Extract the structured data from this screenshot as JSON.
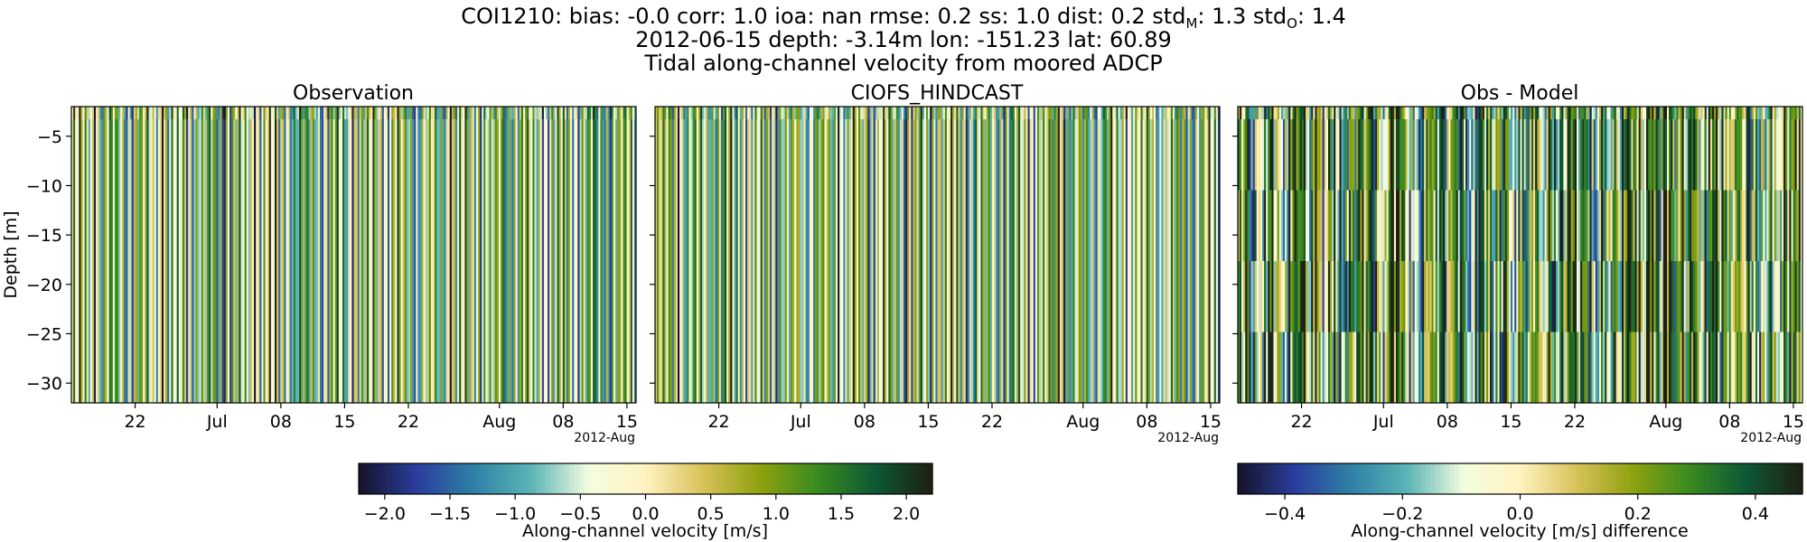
{
  "header": {
    "line1_prefix": "COI1210: bias: -0.0  corr: 1.0  ioa: nan  rmse: 0.2  ss: 1.0  dist: 0.2  std",
    "line1_sub_m": "M",
    "line1_mid": ": 1.3  std",
    "line1_sub_o": "O",
    "line1_suffix": ": 1.4",
    "line2": "2012-06-15 depth: -3.14m lon: -151.23 lat: 60.89",
    "line3": "Tidal along-channel velocity from moored ADCP"
  },
  "chart_data": [
    {
      "type": "heatmap",
      "title": "Observation",
      "ylabel": "Depth [m]",
      "ylim": [
        -32,
        -2
      ],
      "yticks": [
        -5,
        -10,
        -15,
        -20,
        -25,
        -30
      ],
      "xlim": [
        "2012-06-15",
        "2012-08-16"
      ],
      "xticks": [
        {
          "date": "2012-06-22",
          "label": "22"
        },
        {
          "date": "2012-07-01",
          "label": "Jul"
        },
        {
          "date": "2012-07-08",
          "label": "08"
        },
        {
          "date": "2012-07-15",
          "label": "15"
        },
        {
          "date": "2012-07-22",
          "label": "22"
        },
        {
          "date": "2012-08-01",
          "label": "Aug"
        },
        {
          "date": "2012-08-08",
          "label": "08"
        },
        {
          "date": "2012-08-15",
          "label": "15"
        }
      ],
      "offset_label": "2012-Aug",
      "colorbar": "velocity"
    },
    {
      "type": "heatmap",
      "title": "CIOFS_HINDCAST",
      "ylim": [
        -32,
        -2
      ],
      "xlim": [
        "2012-06-15",
        "2012-08-16"
      ],
      "xticks": [
        {
          "date": "2012-06-22",
          "label": "22"
        },
        {
          "date": "2012-07-01",
          "label": "Jul"
        },
        {
          "date": "2012-07-08",
          "label": "08"
        },
        {
          "date": "2012-07-15",
          "label": "15"
        },
        {
          "date": "2012-07-22",
          "label": "22"
        },
        {
          "date": "2012-08-01",
          "label": "Aug"
        },
        {
          "date": "2012-08-08",
          "label": "08"
        },
        {
          "date": "2012-08-15",
          "label": "15"
        }
      ],
      "offset_label": "2012-Aug",
      "colorbar": "velocity"
    },
    {
      "type": "heatmap",
      "title": "Obs - Model",
      "ylim": [
        -32,
        -2
      ],
      "xlim": [
        "2012-06-15",
        "2012-08-16"
      ],
      "xticks": [
        {
          "date": "2012-06-22",
          "label": "22"
        },
        {
          "date": "2012-07-01",
          "label": "Jul"
        },
        {
          "date": "2012-07-08",
          "label": "08"
        },
        {
          "date": "2012-07-15",
          "label": "15"
        },
        {
          "date": "2012-07-22",
          "label": "22"
        },
        {
          "date": "2012-08-01",
          "label": "Aug"
        },
        {
          "date": "2012-08-08",
          "label": "08"
        },
        {
          "date": "2012-08-15",
          "label": "15"
        }
      ],
      "offset_label": "2012-Aug",
      "colorbar": "difference"
    }
  ],
  "colorbars": {
    "velocity": {
      "label": "Along-channel velocity [m/s]",
      "range": [
        -2.2,
        2.2
      ],
      "ticks": [
        -2.0,
        -1.5,
        -1.0,
        -0.5,
        0.0,
        0.5,
        1.0,
        1.5,
        2.0
      ],
      "tick_labels": [
        "−2.0",
        "−1.5",
        "−1.0",
        "−0.5",
        "0.0",
        "0.5",
        "1.0",
        "1.5",
        "2.0"
      ]
    },
    "difference": {
      "label": "Along-channel velocity [m/s] difference",
      "range": [
        -0.48,
        0.48
      ],
      "ticks": [
        -0.4,
        -0.2,
        0.0,
        0.2,
        0.4
      ],
      "tick_labels": [
        "−0.4",
        "−0.2",
        "0.0",
        "0.2",
        "0.4"
      ]
    }
  },
  "colormap": [
    "#15152e",
    "#2a3e9e",
    "#2f82a6",
    "#5bb5b7",
    "#f4fde0",
    "#fff3c0",
    "#d9c25a",
    "#8fa10e",
    "#3c8c1f",
    "#0d5a35",
    "#1e2215"
  ]
}
